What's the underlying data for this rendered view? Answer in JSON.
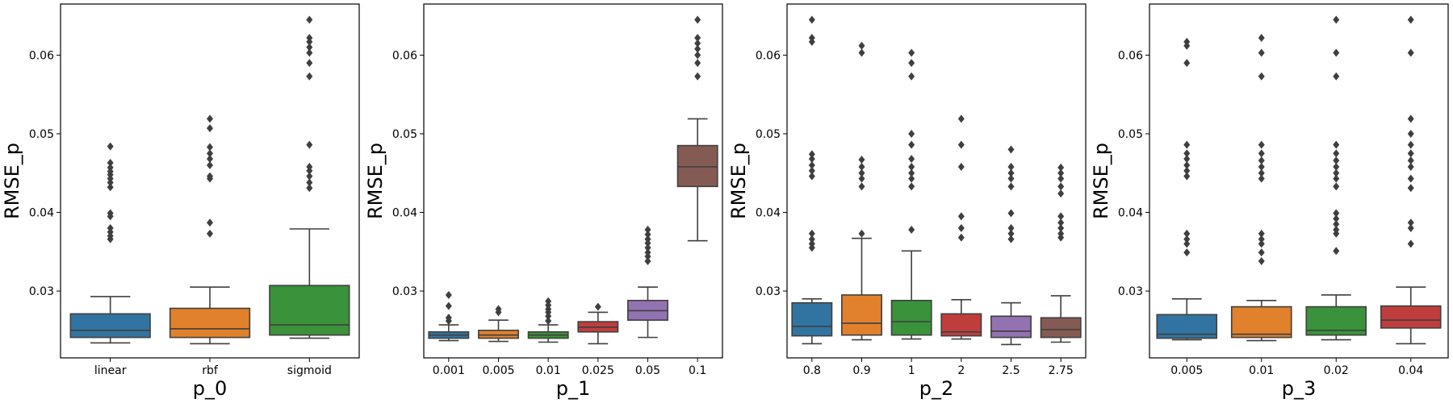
{
  "chart_data": [
    {
      "type": "box",
      "xlabel": "p_0",
      "ylabel": "RMSE_p",
      "ylim": [
        0.0215,
        0.0665
      ],
      "yticks": [
        "0.03",
        "0.04",
        "0.05",
        "0.06"
      ],
      "categories": [
        "linear",
        "rbf",
        "sigmoid"
      ],
      "boxes": [
        {
          "color": "#3274a1",
          "q1": 0.0241,
          "median": 0.025,
          "q3": 0.0271,
          "whisker_low": 0.0234,
          "whisker_high": 0.0293,
          "outliers": [
            0.0484,
            0.0463,
            0.0457,
            0.0452,
            0.0448,
            0.0443,
            0.0438,
            0.0432,
            0.0399,
            0.0395,
            0.038,
            0.0375,
            0.037,
            0.0366
          ]
        },
        {
          "color": "#e1812c",
          "q1": 0.0241,
          "median": 0.0252,
          "q3": 0.0278,
          "whisker_low": 0.0233,
          "whisker_high": 0.0305,
          "outliers": [
            0.0519,
            0.0507,
            0.0483,
            0.0475,
            0.0468,
            0.046,
            0.0446,
            0.0443,
            0.0387,
            0.0373
          ]
        },
        {
          "color": "#3a923a",
          "q1": 0.0244,
          "median": 0.0257,
          "q3": 0.0307,
          "whisker_low": 0.024,
          "whisker_high": 0.0379,
          "outliers": [
            0.0645,
            0.0622,
            0.0617,
            0.061,
            0.0603,
            0.059,
            0.0573,
            0.0486,
            0.0458,
            0.0453,
            0.0446,
            0.0438,
            0.0431
          ]
        }
      ]
    },
    {
      "type": "box",
      "xlabel": "p_1",
      "ylabel": "RMSE_p",
      "ylim": [
        0.0215,
        0.0665
      ],
      "yticks": [
        "0.03",
        "0.04",
        "0.05",
        "0.06"
      ],
      "categories": [
        "0.001",
        "0.005",
        "0.01",
        "0.025",
        "0.05",
        "0.1"
      ],
      "boxes": [
        {
          "color": "#3274a1",
          "q1": 0.024,
          "median": 0.0244,
          "q3": 0.0248,
          "whisker_low": 0.0237,
          "whisker_high": 0.0257,
          "outliers": [
            0.0295,
            0.0281,
            0.0266,
            0.0262
          ]
        },
        {
          "color": "#e1812c",
          "q1": 0.024,
          "median": 0.0244,
          "q3": 0.025,
          "whisker_low": 0.0236,
          "whisker_high": 0.0263,
          "outliers": [
            0.0277,
            0.0273
          ]
        },
        {
          "color": "#3a923a",
          "q1": 0.024,
          "median": 0.0244,
          "q3": 0.0248,
          "whisker_low": 0.0235,
          "whisker_high": 0.0257,
          "outliers": [
            0.0287,
            0.0282,
            0.0277,
            0.0273,
            0.0268,
            0.0262
          ]
        },
        {
          "color": "#c03d3e",
          "q1": 0.0248,
          "median": 0.0254,
          "q3": 0.0261,
          "whisker_low": 0.0233,
          "whisker_high": 0.0273,
          "outliers": [
            0.028
          ]
        },
        {
          "color": "#9372b2",
          "q1": 0.0263,
          "median": 0.0275,
          "q3": 0.0288,
          "whisker_low": 0.0241,
          "whisker_high": 0.0305,
          "outliers": [
            0.0378,
            0.0372,
            0.0366,
            0.0361,
            0.0355,
            0.0349,
            0.0344,
            0.0338
          ]
        },
        {
          "color": "#845b53",
          "q1": 0.0433,
          "median": 0.0458,
          "q3": 0.0485,
          "whisker_low": 0.0364,
          "whisker_high": 0.0519,
          "outliers": [
            0.0645,
            0.0622,
            0.0615,
            0.0608,
            0.06,
            0.059,
            0.0573
          ]
        }
      ]
    },
    {
      "type": "box",
      "xlabel": "p_2",
      "ylabel": "RMSE_p",
      "ylim": [
        0.0215,
        0.0665
      ],
      "yticks": [
        "0.03",
        "0.04",
        "0.05",
        "0.06"
      ],
      "categories": [
        "0.8",
        "0.9",
        "1",
        "2",
        "2.5",
        "2.75"
      ],
      "boxes": [
        {
          "color": "#3274a1",
          "q1": 0.0243,
          "median": 0.0255,
          "q3": 0.0285,
          "whisker_low": 0.0233,
          "whisker_high": 0.029,
          "outliers": [
            0.0645,
            0.0622,
            0.0617,
            0.0474,
            0.0468,
            0.046,
            0.0453,
            0.0446,
            0.0373,
            0.0366,
            0.036,
            0.0355
          ]
        },
        {
          "color": "#e1812c",
          "q1": 0.0244,
          "median": 0.0259,
          "q3": 0.0295,
          "whisker_low": 0.0238,
          "whisker_high": 0.0367,
          "outliers": [
            0.0612,
            0.0603,
            0.0467,
            0.0458,
            0.045,
            0.0443,
            0.0433,
            0.0373
          ]
        },
        {
          "color": "#3a923a",
          "q1": 0.0244,
          "median": 0.0261,
          "q3": 0.0288,
          "whisker_low": 0.0239,
          "whisker_high": 0.0351,
          "outliers": [
            0.0603,
            0.059,
            0.0573,
            0.05,
            0.0486,
            0.0468,
            0.0458,
            0.045,
            0.0443,
            0.0433,
            0.0378
          ]
        },
        {
          "color": "#c03d3e",
          "q1": 0.0243,
          "median": 0.0248,
          "q3": 0.0271,
          "whisker_low": 0.0239,
          "whisker_high": 0.0289,
          "outliers": [
            0.0519,
            0.0486,
            0.0458,
            0.0395,
            0.038,
            0.0368
          ]
        },
        {
          "color": "#9372b2",
          "q1": 0.0241,
          "median": 0.0249,
          "q3": 0.0268,
          "whisker_low": 0.0232,
          "whisker_high": 0.0285,
          "outliers": [
            0.048,
            0.0458,
            0.045,
            0.0443,
            0.0433,
            0.0399,
            0.038,
            0.0373,
            0.0366
          ]
        },
        {
          "color": "#845b53",
          "q1": 0.0241,
          "median": 0.0251,
          "q3": 0.0266,
          "whisker_low": 0.0235,
          "whisker_high": 0.0294,
          "outliers": [
            0.0457,
            0.045,
            0.0443,
            0.0433,
            0.0424,
            0.0395,
            0.0387,
            0.038,
            0.0373,
            0.0368
          ]
        }
      ]
    },
    {
      "type": "box",
      "xlabel": "p_3",
      "ylabel": "RMSE_p",
      "ylim": [
        0.0215,
        0.0665
      ],
      "yticks": [
        "0.03",
        "0.04",
        "0.05",
        "0.06"
      ],
      "categories": [
        "0.005",
        "0.01",
        "0.02",
        "0.04"
      ],
      "boxes": [
        {
          "color": "#3274a1",
          "q1": 0.024,
          "median": 0.0245,
          "q3": 0.027,
          "whisker_low": 0.0238,
          "whisker_high": 0.029,
          "outliers": [
            0.0617,
            0.0612,
            0.059,
            0.0486,
            0.0475,
            0.0468,
            0.046,
            0.0453,
            0.0446,
            0.0373,
            0.0366,
            0.036,
            0.0349
          ]
        },
        {
          "color": "#e1812c",
          "q1": 0.0241,
          "median": 0.0245,
          "q3": 0.028,
          "whisker_low": 0.0237,
          "whisker_high": 0.0288,
          "outliers": [
            0.0622,
            0.0603,
            0.0573,
            0.0486,
            0.0475,
            0.0466,
            0.0458,
            0.045,
            0.0443,
            0.0373,
            0.0366,
            0.036,
            0.0349,
            0.0338
          ]
        },
        {
          "color": "#3a923a",
          "q1": 0.0244,
          "median": 0.025,
          "q3": 0.028,
          "whisker_low": 0.0238,
          "whisker_high": 0.0295,
          "outliers": [
            0.0645,
            0.0603,
            0.0573,
            0.0486,
            0.0475,
            0.0466,
            0.0458,
            0.045,
            0.0443,
            0.0433,
            0.0399,
            0.0392,
            0.0385,
            0.0378,
            0.0373,
            0.0351
          ]
        },
        {
          "color": "#c03d3e",
          "q1": 0.0253,
          "median": 0.0263,
          "q3": 0.0281,
          "whisker_low": 0.0233,
          "whisker_high": 0.0305,
          "outliers": [
            0.0645,
            0.0603,
            0.0519,
            0.05,
            0.0486,
            0.0475,
            0.0466,
            0.0458,
            0.0443,
            0.0431,
            0.0387,
            0.038,
            0.036
          ]
        }
      ]
    }
  ]
}
